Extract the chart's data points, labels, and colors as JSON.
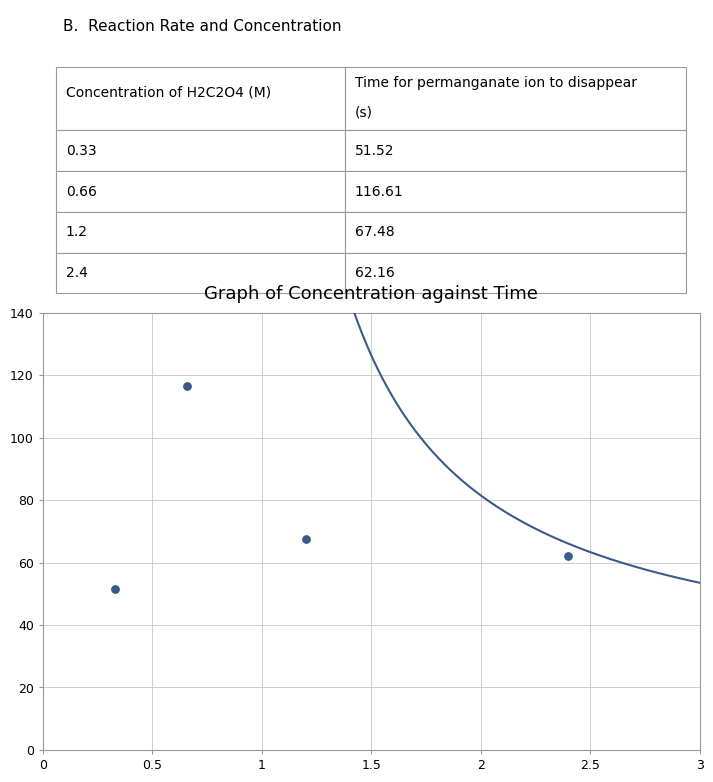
{
  "title_section": "B.  Reaction Rate and Concentration",
  "table_col1_header": "Concentration of H2C2O4 (M)",
  "table_col2_header_line1": "Time for permanganate ion to disappear",
  "table_col2_header_line2": "(s)",
  "table_data": [
    [
      "0.33",
      "51.52"
    ],
    [
      "0.66",
      "116.61"
    ],
    [
      "1.2",
      "67.48"
    ],
    [
      "2.4",
      "62.16"
    ]
  ],
  "graph_title": "Graph of Concentration against Time",
  "x_data": [
    0.33,
    0.66,
    1.2,
    2.4
  ],
  "y_data": [
    51.52,
    116.61,
    67.48,
    62.16
  ],
  "curve_x_start": 0.82,
  "curve_x_end": 3.05,
  "curve_a": 72.0,
  "curve_b": 20.5,
  "curve_c": 0.82,
  "x_lim": [
    0,
    3
  ],
  "y_lim": [
    0,
    140
  ],
  "x_ticks": [
    0,
    0.5,
    1,
    1.5,
    2,
    2.5,
    3
  ],
  "y_ticks": [
    0,
    20,
    40,
    60,
    80,
    100,
    120,
    140
  ],
  "dot_color": "#3a5a8a",
  "line_color": "#3a5a8a",
  "background_color": "#ffffff",
  "grid_color": "#d0d0d0",
  "border_color": "#999999",
  "font_size_section_title": 11,
  "font_size_table": 10,
  "font_size_graph_title": 13,
  "font_size_ticks": 9
}
